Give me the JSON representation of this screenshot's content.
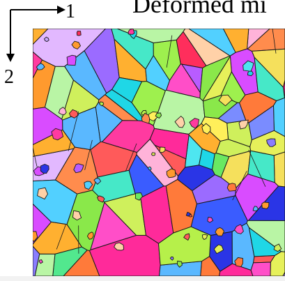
{
  "figure": {
    "title": "Deformed mi",
    "axis1_label": "1",
    "axis2_label": "2"
  },
  "colors": {
    "grain_boundary": "#1a1a1a",
    "palette": [
      "#ff7a3a",
      "#ff9a2e",
      "#ffb030",
      "#ff8c4d",
      "#ff5a5a",
      "#ff2e5c",
      "#ff3aa0",
      "#ff4ec8",
      "#d94cff",
      "#b85cff",
      "#9b6bff",
      "#8a7dff",
      "#7a8cff",
      "#6aa0ff",
      "#5ab8ff",
      "#52d0ff",
      "#4ee6f0",
      "#46e8c8",
      "#52e88e",
      "#6ae862",
      "#8ae84a",
      "#9ef04e",
      "#b6f04a",
      "#cff05c",
      "#e6f05a",
      "#ffef5a",
      "#f5e05c",
      "#b9f5a5",
      "#c9a6ff",
      "#e2b8ff",
      "#ffb3d9",
      "#ffd1a8",
      "#2a35e6",
      "#3a5cff",
      "#1fd7e6",
      "#ff2a9a"
    ]
  }
}
